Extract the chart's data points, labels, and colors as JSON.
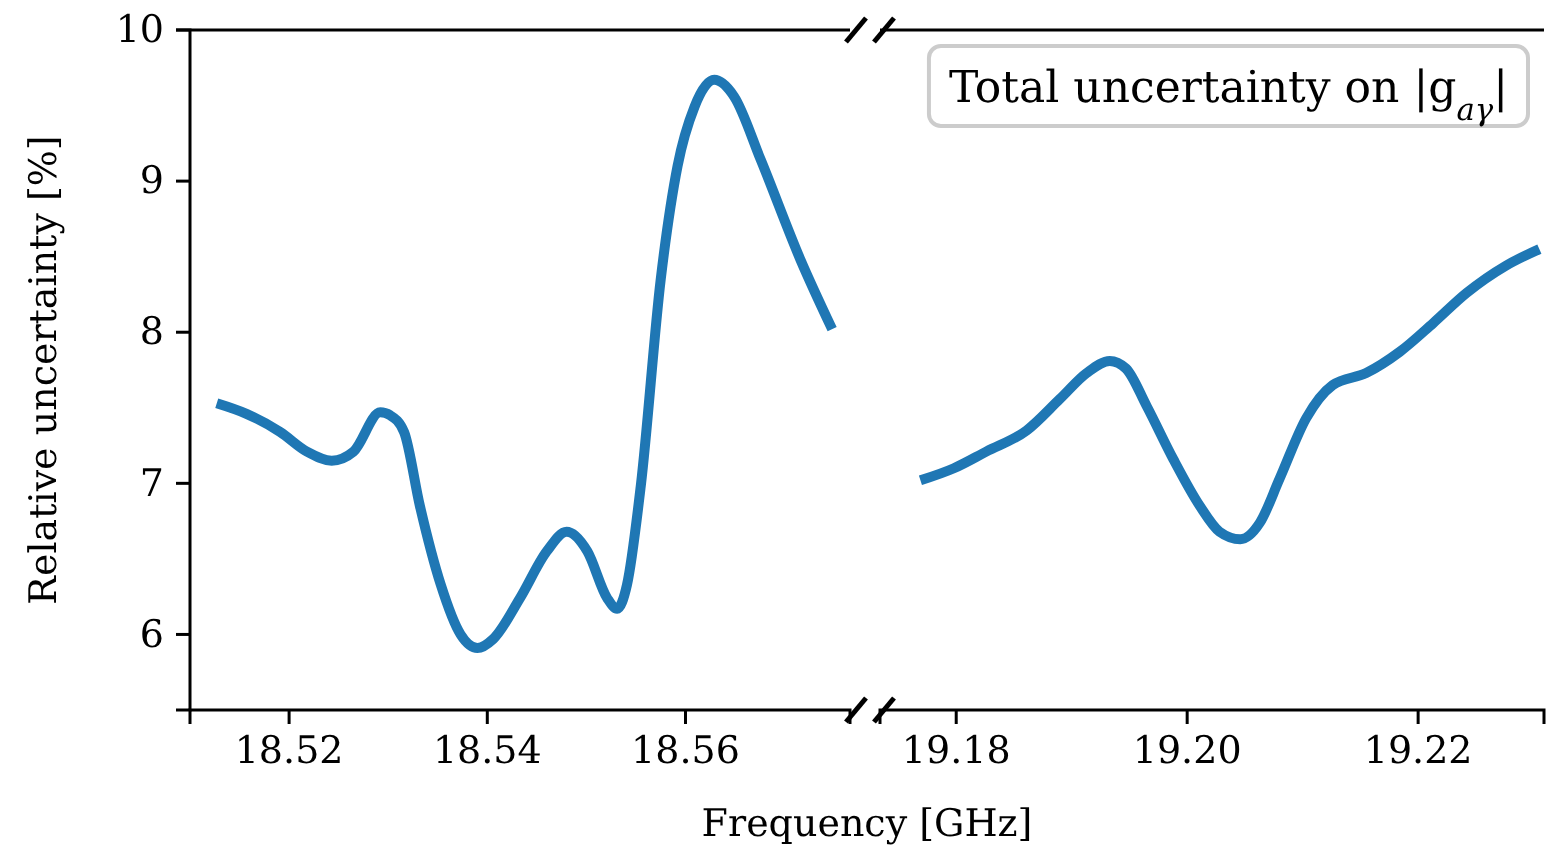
{
  "chart_data": [
    {
      "type": "line",
      "xlabel": "Frequency [GHz]",
      "ylabel": "Relative uncertainty [%]",
      "xlim": [
        18.51,
        18.5766
      ],
      "xticks": [
        18.52,
        18.54,
        18.56
      ],
      "ylim": [
        5.5,
        10
      ],
      "yticks": [
        6,
        7,
        8,
        9,
        10
      ],
      "series": [
        {
          "color": "#1f77b4",
          "x": [
            18.5127,
            18.5157,
            18.5191,
            18.5218,
            18.5243,
            18.5265,
            18.5292,
            18.5302,
            18.5316,
            18.5332,
            18.5353,
            18.5373,
            18.539,
            18.5406,
            18.5433,
            18.546,
            18.548,
            18.5501,
            18.5521,
            18.5531,
            18.5541,
            18.5555,
            18.5575,
            18.5592,
            18.5609,
            18.5629,
            18.5649,
            18.5676,
            18.5716,
            18.5748
          ],
          "values": [
            7.53,
            7.46,
            7.34,
            7.21,
            7.15,
            7.21,
            7.47,
            7.45,
            7.34,
            6.85,
            6.33,
            6.0,
            5.91,
            5.97,
            6.24,
            6.55,
            6.68,
            6.55,
            6.24,
            6.17,
            6.33,
            6.99,
            8.35,
            9.1,
            9.49,
            9.67,
            9.56,
            9.14,
            8.48,
            8.02
          ]
        }
      ]
    },
    {
      "type": "line",
      "xlim": [
        19.1734,
        19.2309
      ],
      "xticks": [
        19.18,
        {
          "value": 19.2,
          "label": "19.20"
        },
        19.22
      ],
      "ylim": [
        5.5,
        10
      ],
      "tick_labels": "x",
      "annotations": [
        "Total uncertainty on |g$_{aγ}$|"
      ],
      "series": [
        {
          "color": "#1f77b4",
          "x": [
            19.1769,
            19.1798,
            19.1826,
            19.1861,
            19.189,
            19.1913,
            19.1933,
            19.1947,
            19.1965,
            19.1988,
            19.2011,
            19.2028,
            19.2046,
            19.2063,
            19.208,
            19.2103,
            19.2126,
            19.2155,
            19.2184,
            19.2213,
            19.2242,
            19.2276,
            19.2305
          ],
          "values": [
            7.02,
            7.1,
            7.21,
            7.35,
            7.56,
            7.73,
            7.81,
            7.76,
            7.51,
            7.16,
            6.85,
            6.68,
            6.63,
            6.74,
            7.03,
            7.43,
            7.65,
            7.73,
            7.87,
            8.06,
            8.26,
            8.44,
            8.55
          ]
        }
      ]
    }
  ]
}
